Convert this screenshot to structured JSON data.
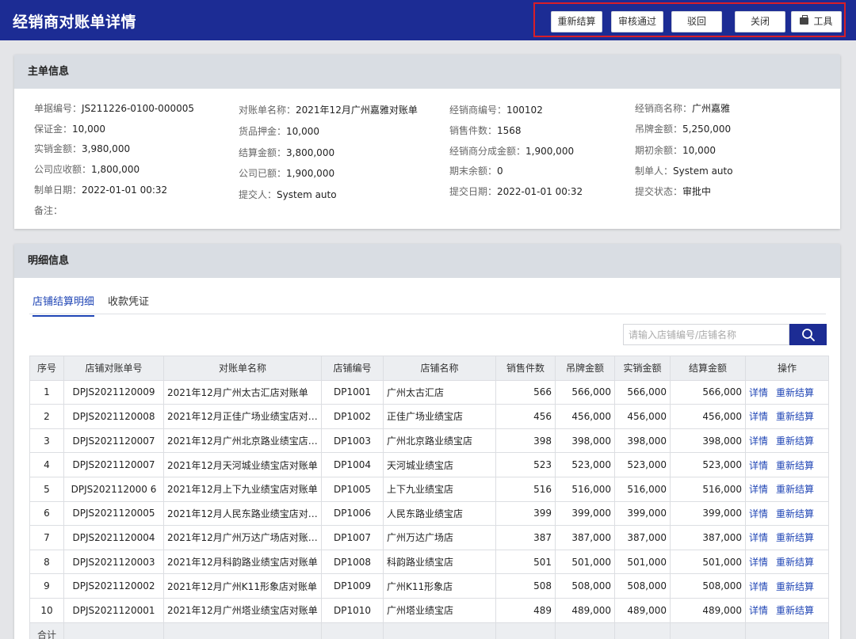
{
  "header": {
    "title": "经销商对账单详情",
    "buttons": {
      "resettle": "重新结算",
      "approve": "审核通过",
      "reject": "驳回",
      "close": "关闭",
      "tools": "工具"
    }
  },
  "main_info": {
    "title": "主单信息",
    "col1": [
      {
        "k": "单据编号：",
        "v": "JS211226-0100-000005"
      },
      {
        "k": "保证金：",
        "v": "10,000"
      },
      {
        "k": "实销金额：",
        "v": "3,980,000"
      },
      {
        "k": "公司应收额：",
        "v": "1,800,000"
      },
      {
        "k": "制单日期：",
        "v": "2022-01-01 00:32"
      },
      {
        "k": "备注：",
        "v": ""
      }
    ],
    "col2": [
      {
        "k": "对账单名称：",
        "v": "2021年12月广州嘉雅对账单"
      },
      {
        "k": "货品押金：",
        "v": "10,000"
      },
      {
        "k": "结算金额：",
        "v": "3,800,000"
      },
      {
        "k": "公司已额：",
        "v": "1,900,000"
      },
      {
        "k": "提交人：",
        "v": "System  auto"
      }
    ],
    "col3": [
      {
        "k": "经销商编号：",
        "v": "100102"
      },
      {
        "k": "销售件数：",
        "v": "1568"
      },
      {
        "k": "经销商分成金额：",
        "v": "1,900,000"
      },
      {
        "k": "期末余额：",
        "v": "0"
      },
      {
        "k": "提交日期：",
        "v": "2022-01-01 00:32"
      }
    ],
    "col4": [
      {
        "k": "经销商名称：",
        "v": "广州嘉雅"
      },
      {
        "k": "吊牌金额：",
        "v": "5,250,000"
      },
      {
        "k": "期初余额：",
        "v": "10,000"
      },
      {
        "k": "制单人：",
        "v": "System  auto"
      },
      {
        "k": "提交状态：",
        "v": "审批中"
      }
    ]
  },
  "detail": {
    "title": "明细信息",
    "tabs": [
      "店铺结算明细",
      "收款凭证"
    ],
    "search_placeholder": "请输入店铺编号/店铺名称",
    "columns": [
      "序号",
      "店铺对账单号",
      "对账单名称",
      "店铺编号",
      "店铺名称",
      "销售件数",
      "吊牌金额",
      "实销金额",
      "结算金额",
      "操作"
    ],
    "action_detail": "详情",
    "action_resettle": "重新结算",
    "rows": [
      [
        "1",
        "DPJS2021120009",
        "2021年12月广州太古汇店对账单",
        "DP1001",
        "广州太古汇店",
        "566",
        "566,000",
        "566,000",
        "566,000"
      ],
      [
        "2",
        "DPJS2021120008",
        "2021年12月正佳广场业绩宝店对…",
        "DP1002",
        "正佳广场业绩宝店",
        "456",
        "456,000",
        "456,000",
        "456,000"
      ],
      [
        "3",
        "DPJS2021120007",
        "2021年12月广州北京路业绩宝店…",
        "DP1003",
        "广州北京路业绩宝店",
        "398",
        "398,000",
        "398,000",
        "398,000"
      ],
      [
        "4",
        "DPJS2021120007",
        "2021年12月天河城业绩宝店对账单",
        "DP1004",
        "天河城业绩宝店",
        "523",
        "523,000",
        "523,000",
        "523,000"
      ],
      [
        "5",
        "DPJS202112000 6",
        "2021年12月上下九业绩宝店对账单",
        "DP1005",
        "上下九业绩宝店",
        "516",
        "516,000",
        "516,000",
        "516,000"
      ],
      [
        "6",
        "DPJS2021120005",
        "2021年12月人民东路业绩宝店对…",
        "DP1006",
        "人民东路业绩宝店",
        "399",
        "399,000",
        "399,000",
        "399,000"
      ],
      [
        "7",
        "DPJS2021120004",
        "2021年12月广州万达广场店对账…",
        "DP1007",
        "广州万达广场店",
        "387",
        "387,000",
        "387,000",
        "387,000"
      ],
      [
        "8",
        "DPJS2021120003",
        "2021年12月科韵路业绩宝店对账单",
        "DP1008",
        "科韵路业绩宝店",
        "501",
        "501,000",
        "501,000",
        "501,000"
      ],
      [
        "9",
        "DPJS2021120002",
        "2021年12月广州K11形象店对账单",
        "DP1009",
        "广州K11形象店",
        "508",
        "508,000",
        "508,000",
        "508,000"
      ],
      [
        "10",
        "DPJS2021120001",
        "2021年12月广州塔业绩宝店对账单",
        "DP1010",
        "广州塔业绩宝店",
        "489",
        "489,000",
        "489,000",
        "489,000"
      ]
    ],
    "total_label": "合计"
  }
}
